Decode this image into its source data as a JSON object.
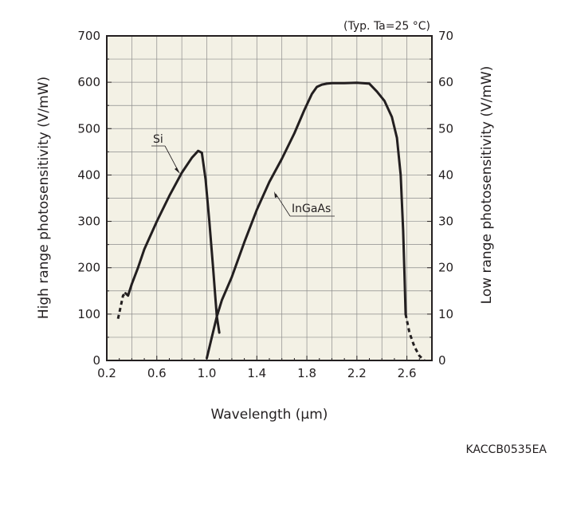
{
  "chart_data": {
    "type": "line",
    "note": "(Typ. Ta=25 °C)",
    "xlabel": "Wavelength (μm)",
    "ylabel_left": "High range photosensitivity (V/mW)",
    "ylabel_right": "Low range photosensitivity (V/mW)",
    "xlim": [
      0.2,
      2.8
    ],
    "ylim_left": [
      0,
      700
    ],
    "ylim_right": [
      0,
      70
    ],
    "x_ticks": [
      0.2,
      0.6,
      1.0,
      1.4,
      1.8,
      2.2,
      2.6
    ],
    "x_tick_labels": [
      "0.2",
      "0.6",
      "1.0",
      "1.4",
      "1.8",
      "2.2",
      "2.6"
    ],
    "y_left_ticks": [
      0,
      100,
      200,
      300,
      400,
      500,
      600,
      700
    ],
    "y_left_tick_labels": [
      "0",
      "100",
      "200",
      "300",
      "400",
      "500",
      "600",
      "700"
    ],
    "y_right_ticks": [
      0,
      10,
      20,
      30,
      40,
      50,
      60,
      70
    ],
    "y_right_tick_labels": [
      "0",
      "10",
      "20",
      "30",
      "40",
      "50",
      "60",
      "70"
    ],
    "grid": true,
    "code": "KACCB0535EA",
    "series": [
      {
        "name": "Si",
        "axis": "left",
        "x": [
          0.35,
          0.37,
          0.4,
          0.45,
          0.5,
          0.6,
          0.7,
          0.8,
          0.88,
          0.93,
          0.96,
          0.99,
          1.02,
          1.05,
          1.07,
          1.08,
          1.1
        ],
        "y": [
          145,
          140,
          165,
          200,
          240,
          300,
          355,
          405,
          437,
          452,
          448,
          390,
          300,
          200,
          130,
          95,
          60
        ],
        "dashed_x": [
          0.29,
          0.31,
          0.33,
          0.35
        ],
        "dashed_y": [
          90,
          115,
          140,
          145
        ]
      },
      {
        "name": "InGaAs",
        "axis": "left",
        "x": [
          1.0,
          1.04,
          1.08,
          1.12,
          1.2,
          1.3,
          1.4,
          1.5,
          1.6,
          1.7,
          1.78,
          1.84,
          1.88,
          1.92,
          1.96,
          2.0,
          2.1,
          2.2,
          2.3,
          2.36,
          2.42,
          2.48,
          2.52,
          2.55,
          2.57,
          2.58,
          2.59
        ],
        "y": [
          5,
          50,
          95,
          130,
          180,
          255,
          325,
          385,
          435,
          490,
          540,
          575,
          590,
          595,
          597,
          598,
          598,
          599,
          597,
          580,
          560,
          525,
          480,
          400,
          280,
          190,
          100
        ],
        "dashed_x": [
          2.59,
          2.62,
          2.66,
          2.7,
          2.74
        ],
        "dashed_y": [
          100,
          60,
          30,
          10,
          0
        ]
      }
    ]
  }
}
